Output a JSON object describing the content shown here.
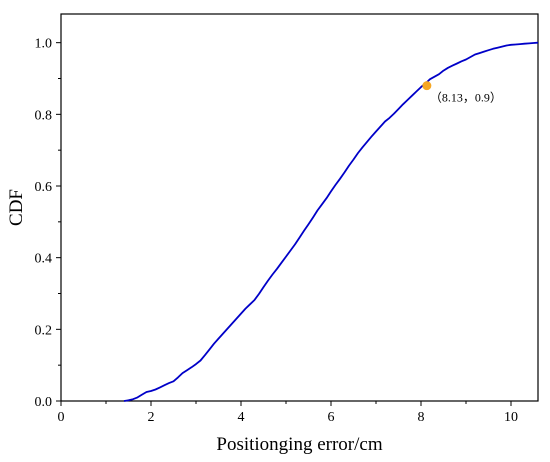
{
  "chart_data": {
    "type": "line",
    "xlabel": "Positionging error/cm",
    "ylabel": "CDF",
    "xlim": [
      0,
      10.6
    ],
    "ylim": [
      0,
      1.08
    ],
    "xticks": [
      0,
      2,
      4,
      6,
      8,
      10
    ],
    "xtick_labels": [
      "0",
      "2",
      "4",
      "6",
      "8",
      "10"
    ],
    "yticks": [
      0,
      0.2,
      0.4,
      0.6,
      0.8,
      1.0
    ],
    "ytick_labels": [
      "0.0",
      "0.2",
      "0.4",
      "0.6",
      "0.8",
      "1.0"
    ],
    "grid": false,
    "legend": "none",
    "series": [
      {
        "color": "#0000c8",
        "x": [
          1.4,
          1.5,
          1.6,
          1.7,
          1.8,
          1.9,
          2.0,
          2.1,
          2.2,
          2.3,
          2.4,
          2.5,
          2.6,
          2.7,
          2.8,
          2.9,
          3.0,
          3.1,
          3.2,
          3.3,
          3.4,
          3.5,
          3.6,
          3.7,
          3.8,
          3.9,
          4.0,
          4.1,
          4.2,
          4.3,
          4.4,
          4.5,
          4.6,
          4.7,
          4.8,
          4.9,
          5.0,
          5.1,
          5.2,
          5.3,
          5.4,
          5.5,
          5.6,
          5.7,
          5.8,
          5.9,
          6.0,
          6.1,
          6.2,
          6.3,
          6.4,
          6.5,
          6.6,
          6.7,
          6.8,
          6.9,
          7.0,
          7.1,
          7.2,
          7.3,
          7.4,
          7.5,
          7.6,
          7.7,
          7.8,
          7.9,
          8.0,
          8.13,
          8.2,
          8.3,
          8.4,
          8.5,
          8.6,
          8.7,
          8.8,
          8.9,
          9.0,
          9.1,
          9.2,
          9.3,
          9.4,
          9.5,
          9.6,
          9.7,
          9.8,
          9.9,
          10.0,
          10.1,
          10.2,
          10.3,
          10.4,
          10.5,
          10.6
        ],
        "y": [
          0.0,
          0.002,
          0.005,
          0.01,
          0.018,
          0.025,
          0.028,
          0.032,
          0.038,
          0.044,
          0.05,
          0.055,
          0.066,
          0.078,
          0.086,
          0.094,
          0.103,
          0.113,
          0.128,
          0.144,
          0.16,
          0.174,
          0.188,
          0.202,
          0.216,
          0.23,
          0.244,
          0.258,
          0.27,
          0.282,
          0.299,
          0.318,
          0.336,
          0.353,
          0.369,
          0.386,
          0.403,
          0.42,
          0.437,
          0.456,
          0.475,
          0.493,
          0.512,
          0.532,
          0.549,
          0.566,
          0.585,
          0.603,
          0.62,
          0.638,
          0.657,
          0.674,
          0.692,
          0.708,
          0.723,
          0.738,
          0.752,
          0.766,
          0.78,
          0.79,
          0.802,
          0.815,
          0.828,
          0.84,
          0.852,
          0.864,
          0.876,
          0.89,
          0.898,
          0.905,
          0.912,
          0.922,
          0.93,
          0.936,
          0.942,
          0.948,
          0.953,
          0.96,
          0.967,
          0.971,
          0.975,
          0.979,
          0.983,
          0.986,
          0.989,
          0.992,
          0.994,
          0.995,
          0.996,
          0.997,
          0.998,
          0.999,
          1.0
        ]
      }
    ],
    "highlight_point": {
      "x": 8.13,
      "y": 0.88,
      "color": "#f5a623",
      "label": "（8.13，0.9）"
    }
  }
}
